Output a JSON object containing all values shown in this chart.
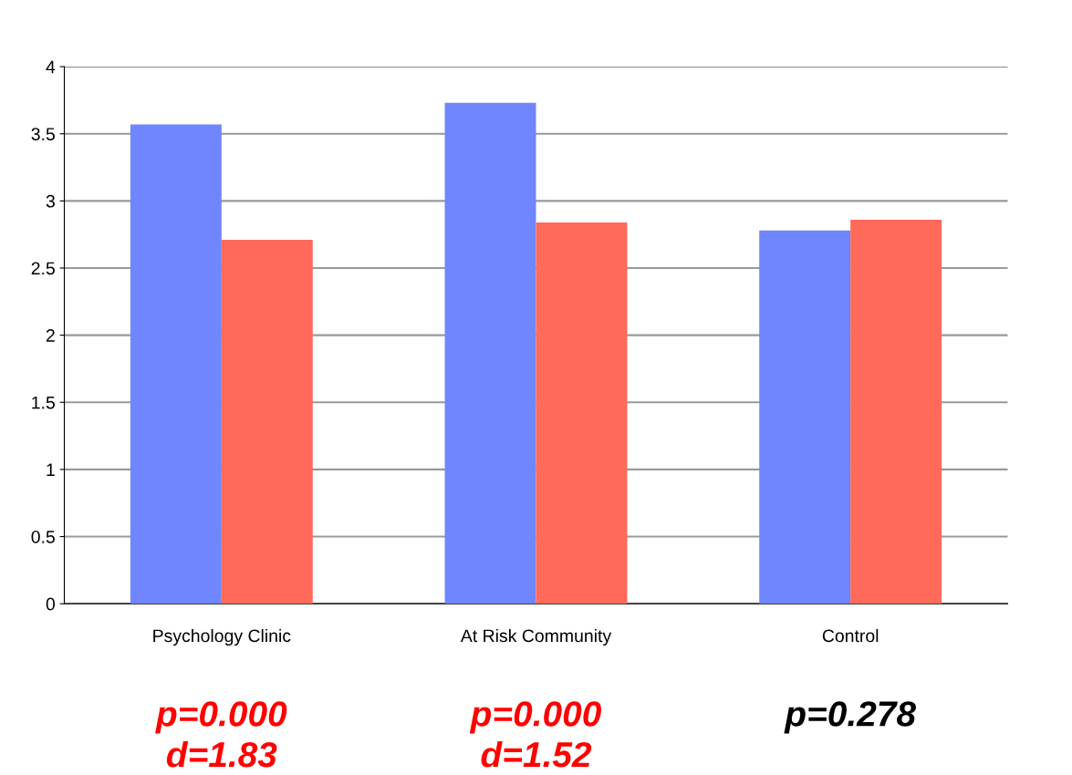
{
  "chart_data": {
    "type": "bar",
    "categories": [
      "Psychology Clinic",
      "At Risk Community",
      "Control"
    ],
    "series": [
      {
        "color": "#6f86ff",
        "values": [
          3.57,
          3.73,
          2.78
        ]
      },
      {
        "color": "#ff6a5a",
        "values": [
          2.71,
          2.84,
          2.86
        ]
      }
    ],
    "ylim": [
      0,
      4
    ],
    "yticks": [
      0,
      0.5,
      1,
      1.5,
      2,
      2.5,
      3,
      3.5,
      4
    ],
    "grid": "y",
    "annotations": [
      "p=0.000\nd=1.83",
      "p=0.000\nd=1.52",
      "p=0.278"
    ]
  }
}
